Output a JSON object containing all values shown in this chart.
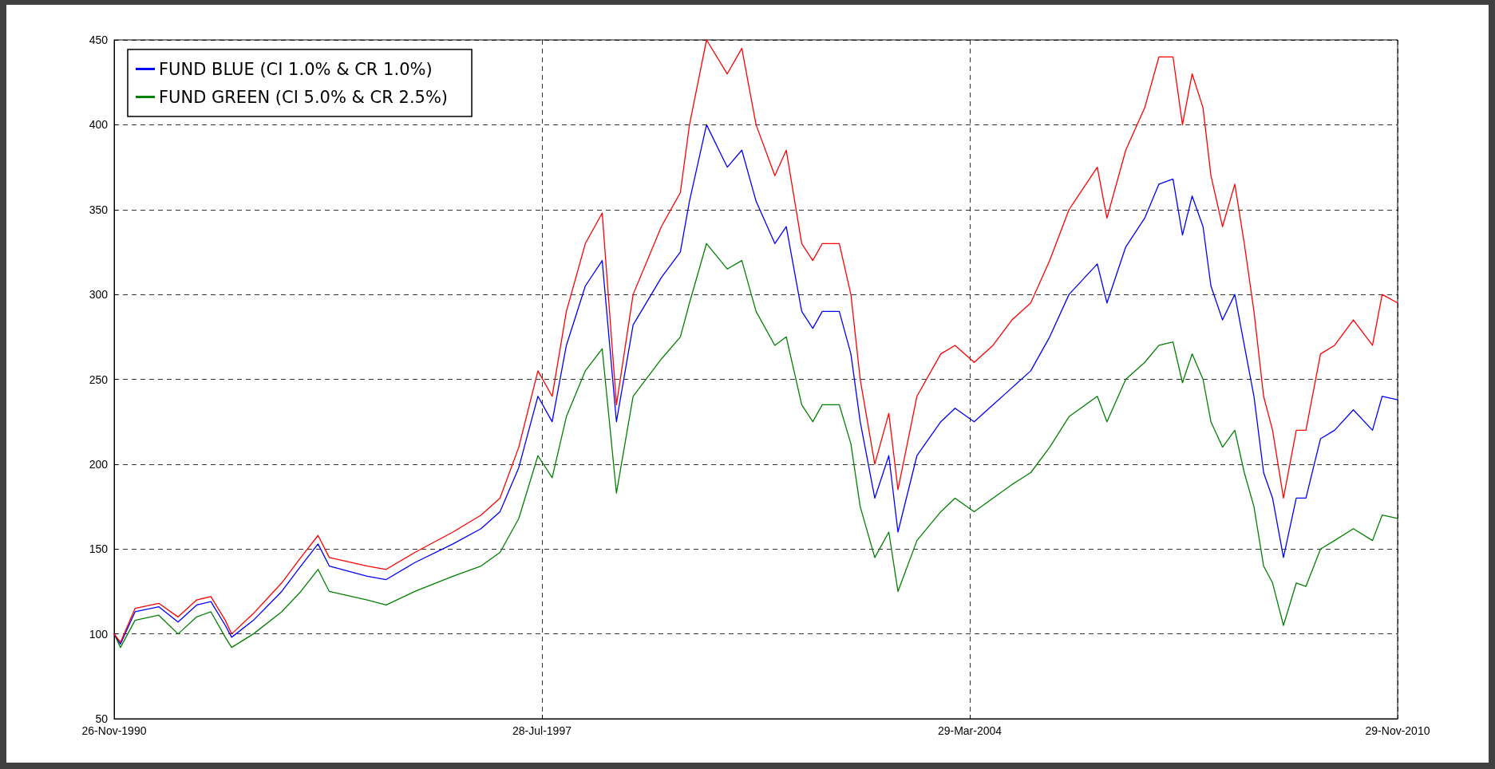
{
  "chart_data": {
    "type": "line",
    "x": [
      "1990-11-26",
      "1991-01-01",
      "1991-03-25",
      "1991-08-07",
      "1991-11-25",
      "1992-03-10",
      "1992-05-30",
      "1992-08-20",
      "1992-09-25",
      "1993-01-27",
      "1993-07-07",
      "1993-10-24",
      "1994-01-30",
      "1994-04-04",
      "1994-11-06",
      "1995-02-22",
      "1995-08-04",
      "1996-03-08",
      "1996-08-15",
      "1996-12-01",
      "1997-03-18",
      "1997-07-05",
      "1997-09-24",
      "1997-12-14",
      "1998-04-01",
      "1998-07-06",
      "1998-09-25",
      "1998-12-29",
      "1999-06-08",
      "1999-09-24",
      "1999-11-15",
      "2000-02-20",
      "2000-06-17",
      "2000-09-08",
      "2000-11-28",
      "2001-03-15",
      "2001-05-19",
      "2001-08-15",
      "2001-10-17",
      "2001-12-10",
      "2002-03-17",
      "2002-05-22",
      "2002-07-14",
      "2002-10-05",
      "2002-12-24",
      "2003-02-14",
      "2003-06-02",
      "2003-10-16",
      "2004-01-05",
      "2004-04-23",
      "2004-08-08",
      "2004-11-24",
      "2005-03-11",
      "2005-06-27",
      "2005-10-15",
      "2006-03-25",
      "2006-05-19",
      "2006-09-03",
      "2006-12-20",
      "2007-03-11",
      "2007-05-30",
      "2007-07-23",
      "2007-09-16",
      "2007-11-17",
      "2008-01-01",
      "2008-03-07",
      "2008-05-16",
      "2008-07-09",
      "2008-09-02",
      "2008-10-27",
      "2008-12-17",
      "2009-02-17",
      "2009-05-01",
      "2009-06-25",
      "2009-09-16",
      "2009-12-05",
      "2010-03-22",
      "2010-07-09",
      "2010-09-02",
      "2010-11-29"
    ],
    "series": [
      {
        "color": "#ff0000",
        "values": [
          100,
          95,
          115,
          118,
          110,
          120,
          122,
          108,
          100,
          112,
          130,
          145,
          158,
          145,
          140,
          138,
          148,
          160,
          170,
          180,
          210,
          255,
          240,
          290,
          330,
          348,
          235,
          300,
          340,
          360,
          400,
          450,
          430,
          445,
          400,
          370,
          385,
          330,
          320,
          330,
          330,
          300,
          250,
          200,
          230,
          185,
          240,
          265,
          270,
          260,
          270,
          285,
          295,
          320,
          350,
          375,
          345,
          385,
          410,
          440,
          440,
          400,
          430,
          410,
          370,
          340,
          365,
          330,
          290,
          240,
          220,
          180,
          220,
          220,
          265,
          270,
          285,
          270,
          300,
          295
        ]
      },
      {
        "name": "FUND BLUE (CI 1.0% & CR 1.0%)",
        "color": "#0000ff",
        "values": [
          100,
          94,
          113,
          116,
          107,
          117,
          119,
          105,
          98,
          108,
          125,
          140,
          153,
          140,
          134,
          132,
          142,
          153,
          162,
          172,
          198,
          240,
          225,
          270,
          305,
          320,
          225,
          282,
          310,
          325,
          355,
          400,
          375,
          385,
          355,
          330,
          340,
          290,
          280,
          290,
          290,
          265,
          225,
          180,
          205,
          160,
          205,
          225,
          233,
          225,
          235,
          245,
          255,
          275,
          300,
          318,
          295,
          328,
          345,
          365,
          368,
          335,
          358,
          340,
          305,
          285,
          300,
          270,
          240,
          195,
          180,
          145,
          180,
          180,
          215,
          220,
          232,
          220,
          240,
          238
        ]
      },
      {
        "name": "FUND GREEN (CI 5.0% & CR 2.5%)",
        "color": "#008000",
        "values": [
          100,
          92,
          108,
          111,
          100,
          110,
          113,
          98,
          92,
          100,
          113,
          125,
          138,
          125,
          120,
          117,
          125,
          134,
          140,
          148,
          168,
          205,
          192,
          228,
          255,
          268,
          183,
          240,
          262,
          275,
          295,
          330,
          315,
          320,
          290,
          270,
          275,
          235,
          225,
          235,
          235,
          212,
          175,
          145,
          160,
          125,
          155,
          172,
          180,
          172,
          180,
          188,
          195,
          210,
          228,
          240,
          225,
          250,
          260,
          270,
          272,
          248,
          265,
          250,
          225,
          210,
          220,
          195,
          175,
          140,
          130,
          105,
          130,
          128,
          150,
          155,
          162,
          155,
          170,
          168
        ]
      }
    ],
    "xlim": [
      "1990-11-26",
      "2010-11-29"
    ],
    "xticks": [
      {
        "value": "1990-11-26",
        "label": "26-Nov-1990"
      },
      {
        "value": "1997-07-28",
        "label": "28-Jul-1997"
      },
      {
        "value": "2004-03-29",
        "label": "29-Mar-2004"
      },
      {
        "value": "2010-11-29",
        "label": "29-Nov-2010"
      }
    ],
    "ylim": [
      50,
      450
    ],
    "yticks": [
      50,
      100,
      150,
      200,
      250,
      300,
      350,
      400,
      450
    ],
    "grid": true,
    "line_style": "solid",
    "marker": "none",
    "legend": "top left"
  }
}
